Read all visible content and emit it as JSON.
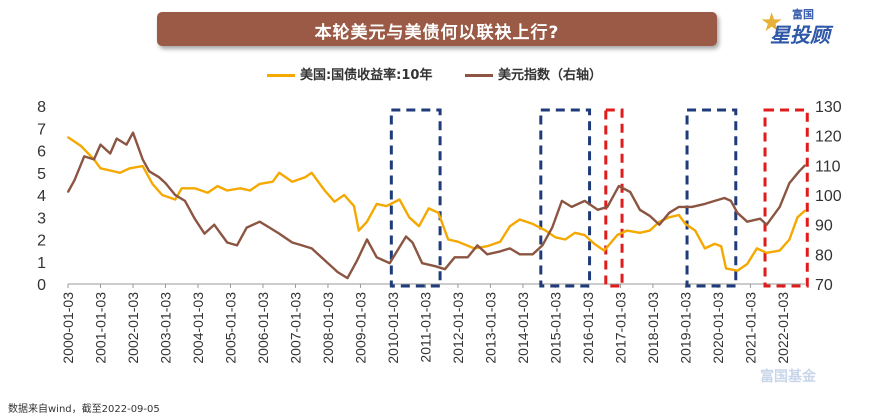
{
  "header": {
    "title": "本轮美元与美债何以联袂上行?"
  },
  "logo": {
    "top_text": "富国",
    "main_text": "星投顾"
  },
  "footnote": "数据来自wind，截至2022-09-05",
  "watermark": "富国基金",
  "chart_data": {
    "type": "line",
    "title": "本轮美元与美债何以联袂上行?",
    "legend_position": "top",
    "grid": false,
    "x_ticks": [
      "2000-01-03",
      "2001-01-03",
      "2002-01-03",
      "2003-01-03",
      "2004-01-03",
      "2005-01-03",
      "2006-01-03",
      "2007-01-03",
      "2008-01-03",
      "2009-01-03",
      "2010-01-03",
      "2011-01-03",
      "2012-01-03",
      "2013-01-03",
      "2014-01-03",
      "2015-01-03",
      "2016-01-03",
      "2017-01-03",
      "2018-01-03",
      "2019-01-03",
      "2020-01-03",
      "2021-01-03",
      "2022-01-03"
    ],
    "y_left": {
      "min": 0,
      "max": 8,
      "ticks": [
        0,
        1,
        2,
        3,
        4,
        5,
        6,
        7,
        8
      ]
    },
    "y_right": {
      "min": 70,
      "max": 130,
      "ticks": [
        70,
        80,
        90,
        100,
        110,
        120,
        130
      ]
    },
    "series": [
      {
        "name": "美国:国债收益率:10年",
        "axis": "left",
        "color": "#f5a800",
        "x": [
          2000.0,
          2000.4,
          2000.8,
          2001.0,
          2001.3,
          2001.6,
          2001.9,
          2002.3,
          2002.6,
          2002.9,
          2003.3,
          2003.5,
          2003.9,
          2004.3,
          2004.6,
          2004.9,
          2005.3,
          2005.6,
          2005.9,
          2006.3,
          2006.5,
          2006.9,
          2007.3,
          2007.5,
          2007.9,
          2008.2,
          2008.5,
          2008.8,
          2008.95,
          2009.2,
          2009.5,
          2009.8,
          2010.2,
          2010.5,
          2010.8,
          2011.1,
          2011.4,
          2011.7,
          2012.0,
          2012.5,
          2012.9,
          2013.3,
          2013.6,
          2013.9,
          2014.3,
          2014.7,
          2015.0,
          2015.3,
          2015.6,
          2015.9,
          2016.2,
          2016.5,
          2016.9,
          2017.2,
          2017.6,
          2017.9,
          2018.2,
          2018.5,
          2018.8,
          2019.0,
          2019.3,
          2019.6,
          2019.9,
          2020.1,
          2020.25,
          2020.6,
          2020.9,
          2021.2,
          2021.5,
          2021.9,
          2022.2,
          2022.45,
          2022.68
        ],
        "values": [
          6.6,
          6.2,
          5.6,
          5.2,
          5.1,
          5.0,
          5.2,
          5.3,
          4.5,
          4.0,
          3.8,
          4.3,
          4.3,
          4.1,
          4.4,
          4.2,
          4.3,
          4.2,
          4.5,
          4.6,
          5.0,
          4.6,
          4.8,
          5.0,
          4.2,
          3.7,
          4.0,
          3.5,
          2.4,
          2.8,
          3.6,
          3.5,
          3.8,
          3.0,
          2.6,
          3.4,
          3.2,
          2.0,
          1.9,
          1.6,
          1.7,
          1.9,
          2.6,
          2.9,
          2.7,
          2.4,
          2.1,
          2.0,
          2.3,
          2.2,
          1.8,
          1.5,
          2.2,
          2.4,
          2.3,
          2.4,
          2.8,
          3.0,
          3.1,
          2.7,
          2.4,
          1.6,
          1.8,
          1.7,
          0.7,
          0.6,
          0.9,
          1.6,
          1.4,
          1.5,
          2.0,
          3.0,
          3.3
        ]
      },
      {
        "name": "美元指数（右轴）",
        "axis": "right",
        "color": "#8b5542",
        "x": [
          2000.0,
          2000.2,
          2000.5,
          2000.8,
          2001.0,
          2001.3,
          2001.5,
          2001.8,
          2002.0,
          2002.3,
          2002.5,
          2002.8,
          2003.0,
          2003.3,
          2003.6,
          2003.9,
          2004.2,
          2004.5,
          2004.9,
          2005.2,
          2005.5,
          2005.9,
          2006.2,
          2006.5,
          2006.9,
          2007.2,
          2007.5,
          2007.9,
          2008.3,
          2008.6,
          2008.9,
          2009.2,
          2009.5,
          2009.9,
          2010.4,
          2010.6,
          2010.9,
          2011.3,
          2011.6,
          2011.9,
          2012.3,
          2012.6,
          2012.9,
          2013.3,
          2013.6,
          2013.9,
          2014.3,
          2014.6,
          2014.9,
          2015.2,
          2015.5,
          2015.9,
          2016.3,
          2016.6,
          2016.95,
          2017.3,
          2017.6,
          2017.9,
          2018.2,
          2018.5,
          2018.8,
          2019.2,
          2019.6,
          2019.9,
          2020.2,
          2020.4,
          2020.6,
          2020.9,
          2021.3,
          2021.5,
          2021.9,
          2022.2,
          2022.5,
          2022.68
        ],
        "values": [
          101,
          105,
          113,
          112,
          117,
          114,
          119,
          117,
          121,
          112,
          108,
          106,
          104,
          100,
          98,
          92,
          87,
          90,
          84,
          83,
          89,
          91,
          89,
          87,
          84,
          83,
          82,
          78,
          74,
          72,
          78,
          85,
          79,
          77,
          86,
          84,
          77,
          76,
          75,
          79,
          79,
          83,
          80,
          81,
          82,
          80,
          80,
          83,
          89,
          98,
          96,
          98,
          95,
          96,
          103,
          101,
          95,
          93,
          90,
          94,
          96,
          96,
          97,
          98,
          99,
          98,
          94,
          91,
          92,
          90,
          96,
          104,
          108,
          110
        ]
      }
    ],
    "highlight_boxes": [
      {
        "x_start": 2009.95,
        "x_end": 2011.45,
        "color": "#1f3b7a"
      },
      {
        "x_start": 2014.55,
        "x_end": 2016.05,
        "color": "#1f3b7a"
      },
      {
        "x_start": 2016.55,
        "x_end": 2017.05,
        "color": "#e01b1b"
      },
      {
        "x_start": 2019.05,
        "x_end": 2020.55,
        "color": "#1f3b7a"
      },
      {
        "x_start": 2021.45,
        "x_end": 2022.75,
        "color": "#e01b1b"
      }
    ]
  }
}
